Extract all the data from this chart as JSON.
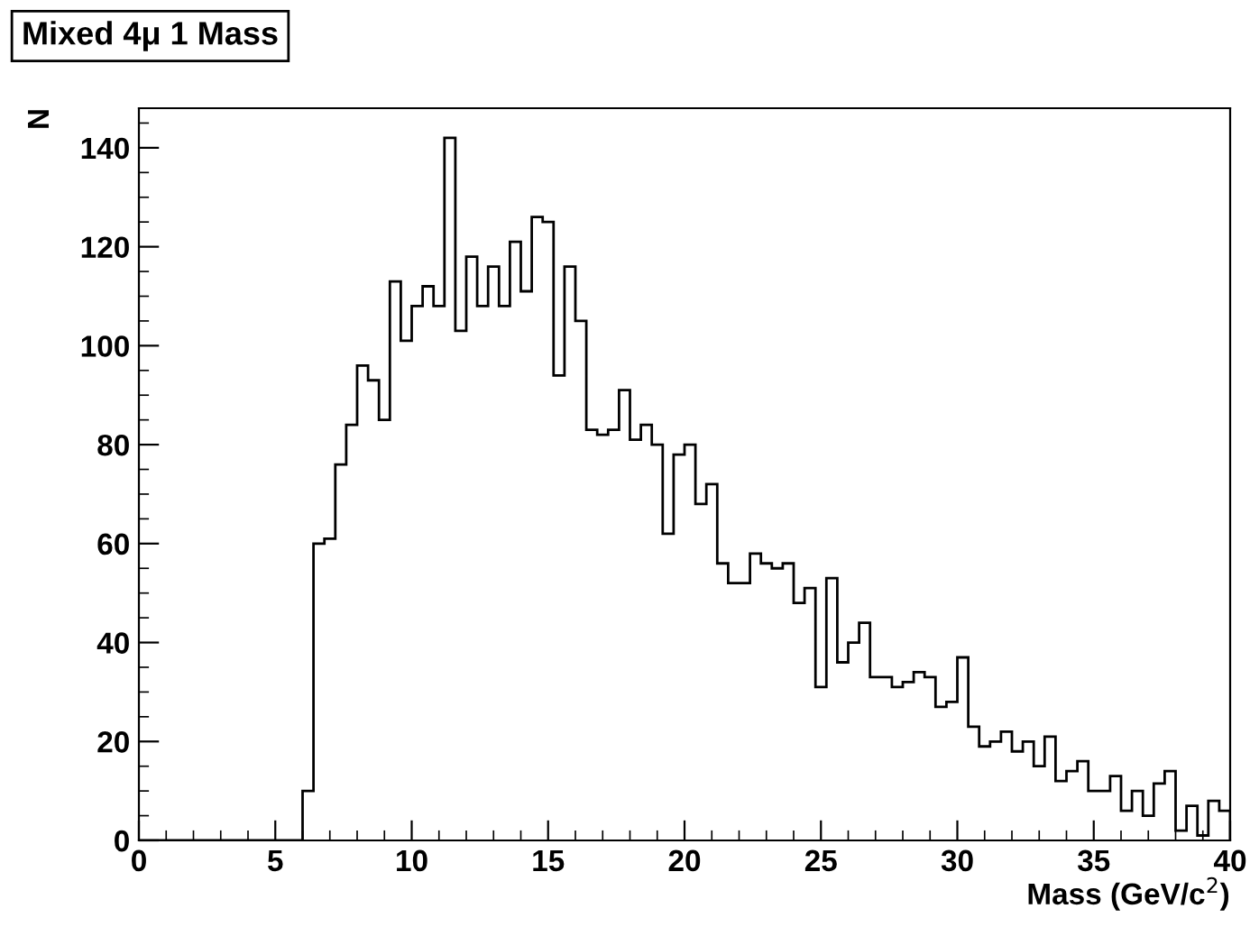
{
  "chart_data": {
    "type": "histogram",
    "title": "Mixed 4μ 1 Mass",
    "xlabel": "Mass (GeV/c$^{2}$)",
    "ylabel": "N",
    "bins": [
      0,
      0.4,
      0.8,
      1.2,
      1.6,
      2.0,
      2.4,
      2.8,
      3.2,
      3.6,
      4.0,
      4.4,
      4.8,
      5.2,
      5.6,
      6.0,
      6.4,
      6.8,
      7.2,
      7.6,
      8.0,
      8.4,
      8.8,
      9.2,
      9.6,
      10.0,
      10.4,
      10.8,
      11.2,
      11.6,
      12.0,
      12.4,
      12.8,
      13.2,
      13.6,
      14.0,
      14.4,
      14.8,
      15.2,
      15.6,
      16.0,
      16.4,
      16.8,
      17.2,
      17.6,
      18.0,
      18.4,
      18.8,
      19.2,
      19.6,
      20.0,
      20.4,
      20.8,
      21.2,
      21.6,
      22.0,
      22.4,
      22.8,
      23.2,
      23.6,
      24.0,
      24.4,
      24.8,
      25.2,
      25.6,
      26.0,
      26.4,
      26.8,
      27.2,
      27.6,
      28.0,
      28.4,
      28.8,
      29.2,
      29.6,
      30.0,
      30.4,
      30.8,
      31.2,
      31.6,
      32.0,
      32.4,
      32.8,
      33.2,
      33.6,
      34.0,
      34.4,
      34.8,
      35.2,
      35.6,
      36.0,
      36.4,
      36.8,
      37.2,
      37.6,
      38.0,
      38.4,
      38.8,
      39.2,
      39.6,
      40.0
    ],
    "values": [
      0,
      0,
      0,
      0,
      0,
      0,
      0,
      0,
      0,
      0,
      0,
      0,
      0,
      0,
      0,
      10,
      60,
      61,
      76,
      84,
      96,
      93,
      85,
      113,
      101,
      108,
      112,
      108,
      142,
      103,
      118,
      108,
      116,
      108,
      121,
      111,
      126,
      125,
      94,
      116,
      105,
      83,
      82,
      83,
      91,
      81,
      84,
      80,
      62,
      78,
      80,
      68,
      72,
      56,
      52,
      52,
      58,
      56,
      55,
      56,
      48,
      51,
      31,
      53,
      36,
      40,
      44,
      33,
      33,
      31,
      32,
      34,
      33,
      27,
      28,
      37,
      23,
      19,
      20,
      22,
      18,
      20,
      15,
      21,
      12,
      14,
      16,
      10,
      10,
      13,
      6,
      10,
      5,
      11.5,
      14,
      2,
      7,
      1,
      8,
      6
    ],
    "color": "#000000",
    "xlim": [
      0,
      40
    ],
    "xticks": [
      0,
      5,
      10,
      15,
      20,
      25,
      30,
      35,
      40
    ],
    "ylim": [
      0,
      148
    ],
    "yticks": [
      0,
      20,
      40,
      60,
      80,
      100,
      120,
      140
    ]
  }
}
